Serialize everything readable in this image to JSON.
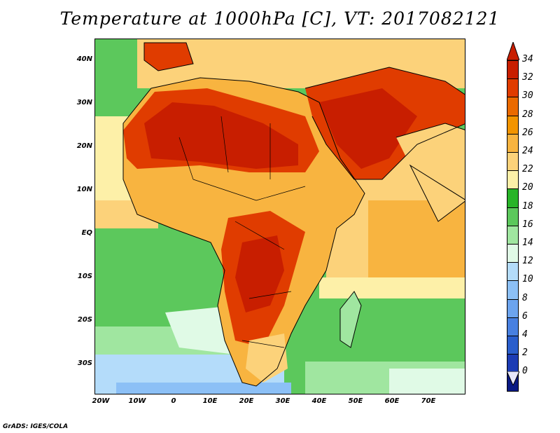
{
  "title": "Temperature at 1000hPa [C], VT: 2017082121",
  "credit": "GrADS: IGES/COLA",
  "latitude_labels": [
    "40N",
    "30N",
    "20N",
    "10N",
    "EQ",
    "10S",
    "20S",
    "30S"
  ],
  "longitude_labels": [
    "20W",
    "10W",
    "0",
    "10E",
    "20E",
    "30E",
    "40E",
    "50E",
    "60E",
    "70E"
  ],
  "colorbar": {
    "labels": [
      "34",
      "32",
      "30",
      "28",
      "26",
      "24",
      "22",
      "20",
      "18",
      "16",
      "14",
      "12",
      "10",
      "8",
      "6",
      "4",
      "2",
      "0"
    ],
    "colors_top_to_bottom": [
      "#c81e00",
      "#e03c00",
      "#ea6a00",
      "#f29400",
      "#f8b440",
      "#fcd27a",
      "#fdf0a8",
      "#28b428",
      "#5cc85c",
      "#a0e6a0",
      "#e0fae6",
      "#b4dcfa",
      "#8cc0f6",
      "#6ca4ee",
      "#4880e0",
      "#2a5ecc",
      "#1c3cb4",
      "#0a1a84"
    ]
  },
  "colors": {
    "ocean_cool": "#a0e6a0",
    "ocean_mid": "#5cc85c",
    "land_hot": "#e03c00",
    "land_warm": "#f8b440"
  }
}
